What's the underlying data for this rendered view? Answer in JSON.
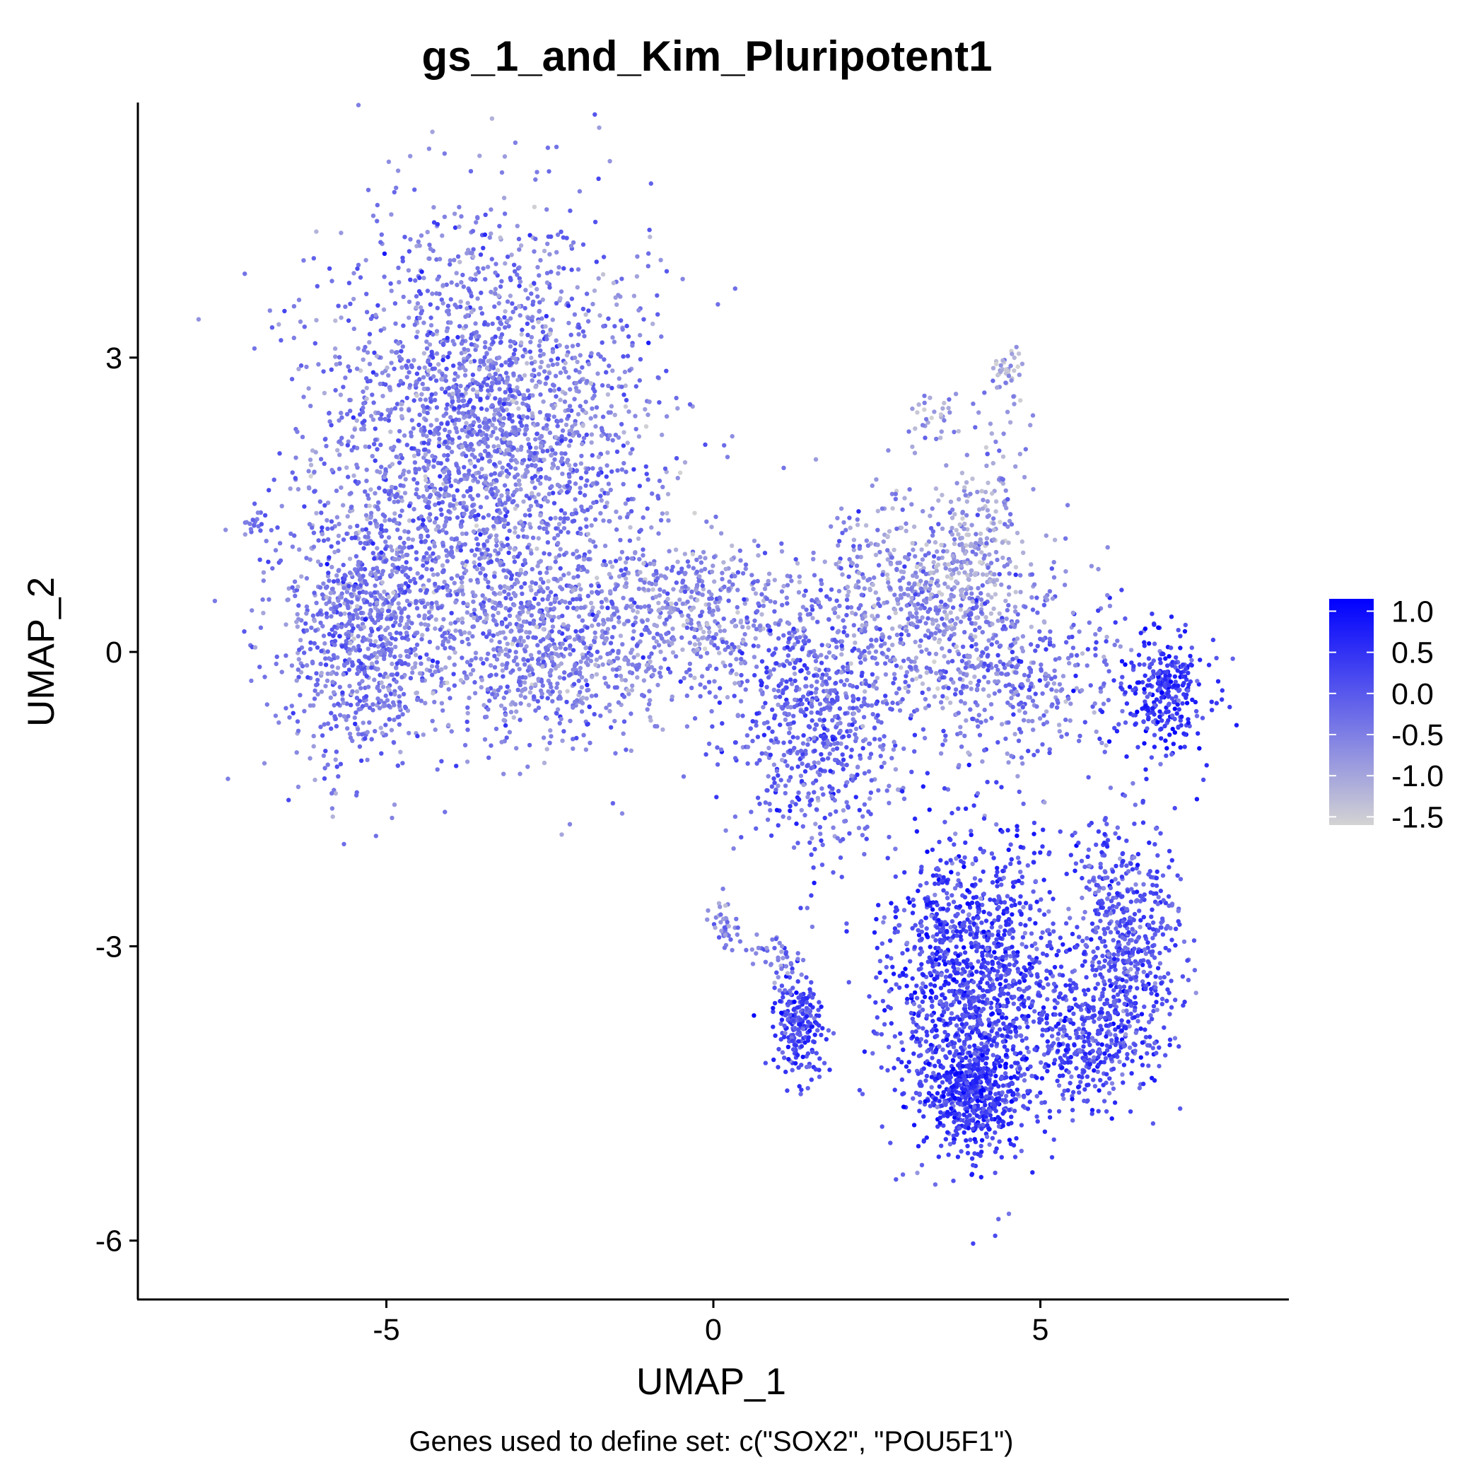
{
  "chart_data": {
    "type": "scatter",
    "title": "gs_1_and_Kim_Pluripotent1",
    "xlabel": "UMAP_1",
    "ylabel": "UMAP_2",
    "caption": "Genes used to define set: c(\"SOX2\", \"POU5F1\")",
    "xlim": [
      -8.8,
      8.8
    ],
    "ylim": [
      -6.6,
      5.6
    ],
    "x_ticks": [
      -5,
      0,
      5
    ],
    "x_tick_labels": [
      "-5",
      "0",
      "5"
    ],
    "y_ticks": [
      -6,
      -3,
      0,
      3
    ],
    "y_tick_labels": [
      "-6",
      "-3",
      "0",
      "3"
    ],
    "grid": false,
    "legend": {
      "placement": "right",
      "type": "colorbar",
      "range": [
        -1.6,
        1.15
      ],
      "ticks": [
        1.0,
        0.5,
        0.0,
        -0.5,
        -1.0,
        -1.5
      ],
      "tick_labels": [
        "1.0",
        "0.5",
        "0.0",
        "-0.5",
        "-1.0",
        "-1.5"
      ],
      "colors": [
        "#d3d3d3",
        "#0000ff"
      ]
    },
    "clusters": [
      {
        "x": -3.5,
        "y": 2.2,
        "sx": 1.7,
        "sy": 1.5,
        "n": 2600,
        "score": -0.45
      },
      {
        "x": -5.3,
        "y": 0.2,
        "sx": 0.8,
        "sy": 0.9,
        "n": 900,
        "score": -0.4
      },
      {
        "x": -2.5,
        "y": 0.0,
        "sx": 1.3,
        "sy": 0.6,
        "n": 700,
        "score": -0.5
      },
      {
        "x": -0.2,
        "y": 0.4,
        "sx": 1.0,
        "sy": 0.5,
        "n": 450,
        "score": -0.6
      },
      {
        "x": 1.6,
        "y": -0.7,
        "sx": 0.9,
        "sy": 0.9,
        "n": 700,
        "score": -0.15
      },
      {
        "x": 3.0,
        "y": 0.6,
        "sx": 1.0,
        "sy": 0.7,
        "n": 500,
        "score": -0.7
      },
      {
        "x": 4.0,
        "y": 1.0,
        "sx": 0.5,
        "sy": 0.5,
        "n": 170,
        "score": -1.0
      },
      {
        "x": 4.5,
        "y": -0.2,
        "sx": 1.2,
        "sy": 0.7,
        "n": 500,
        "score": -0.35
      },
      {
        "x": 6.9,
        "y": -0.4,
        "sx": 0.5,
        "sy": 0.4,
        "n": 300,
        "score": 0.45
      },
      {
        "x": 4.0,
        "y": -3.4,
        "sx": 0.9,
        "sy": 1.0,
        "n": 1400,
        "score": 0.25
      },
      {
        "x": 3.9,
        "y": -4.5,
        "sx": 0.5,
        "sy": 0.35,
        "n": 450,
        "score": 0.45
      },
      {
        "x": 6.3,
        "y": -3.0,
        "sx": 0.55,
        "sy": 0.9,
        "n": 600,
        "score": 0.1
      },
      {
        "x": 5.6,
        "y": -4.0,
        "sx": 0.6,
        "sy": 0.4,
        "n": 300,
        "score": 0.2
      },
      {
        "x": 1.3,
        "y": -3.8,
        "sx": 0.25,
        "sy": 0.35,
        "n": 220,
        "score": 0.2
      },
      {
        "x": 0.2,
        "y": -2.8,
        "sx": 0.15,
        "sy": 0.2,
        "n": 40,
        "score": -0.6
      },
      {
        "x": 1.0,
        "y": -3.1,
        "sx": 0.3,
        "sy": 0.15,
        "n": 40,
        "score": -0.4
      },
      {
        "x": 4.5,
        "y": 2.9,
        "sx": 0.15,
        "sy": 0.15,
        "n": 35,
        "score": -1.1
      },
      {
        "x": 4.3,
        "y": 2.0,
        "sx": 0.4,
        "sy": 0.6,
        "n": 50,
        "score": -0.7
      },
      {
        "x": 3.3,
        "y": 2.4,
        "sx": 0.25,
        "sy": 0.2,
        "n": 30,
        "score": -0.9
      },
      {
        "x": -7.0,
        "y": 1.3,
        "sx": 0.15,
        "sy": 0.1,
        "n": 15,
        "score": -0.5
      }
    ]
  }
}
